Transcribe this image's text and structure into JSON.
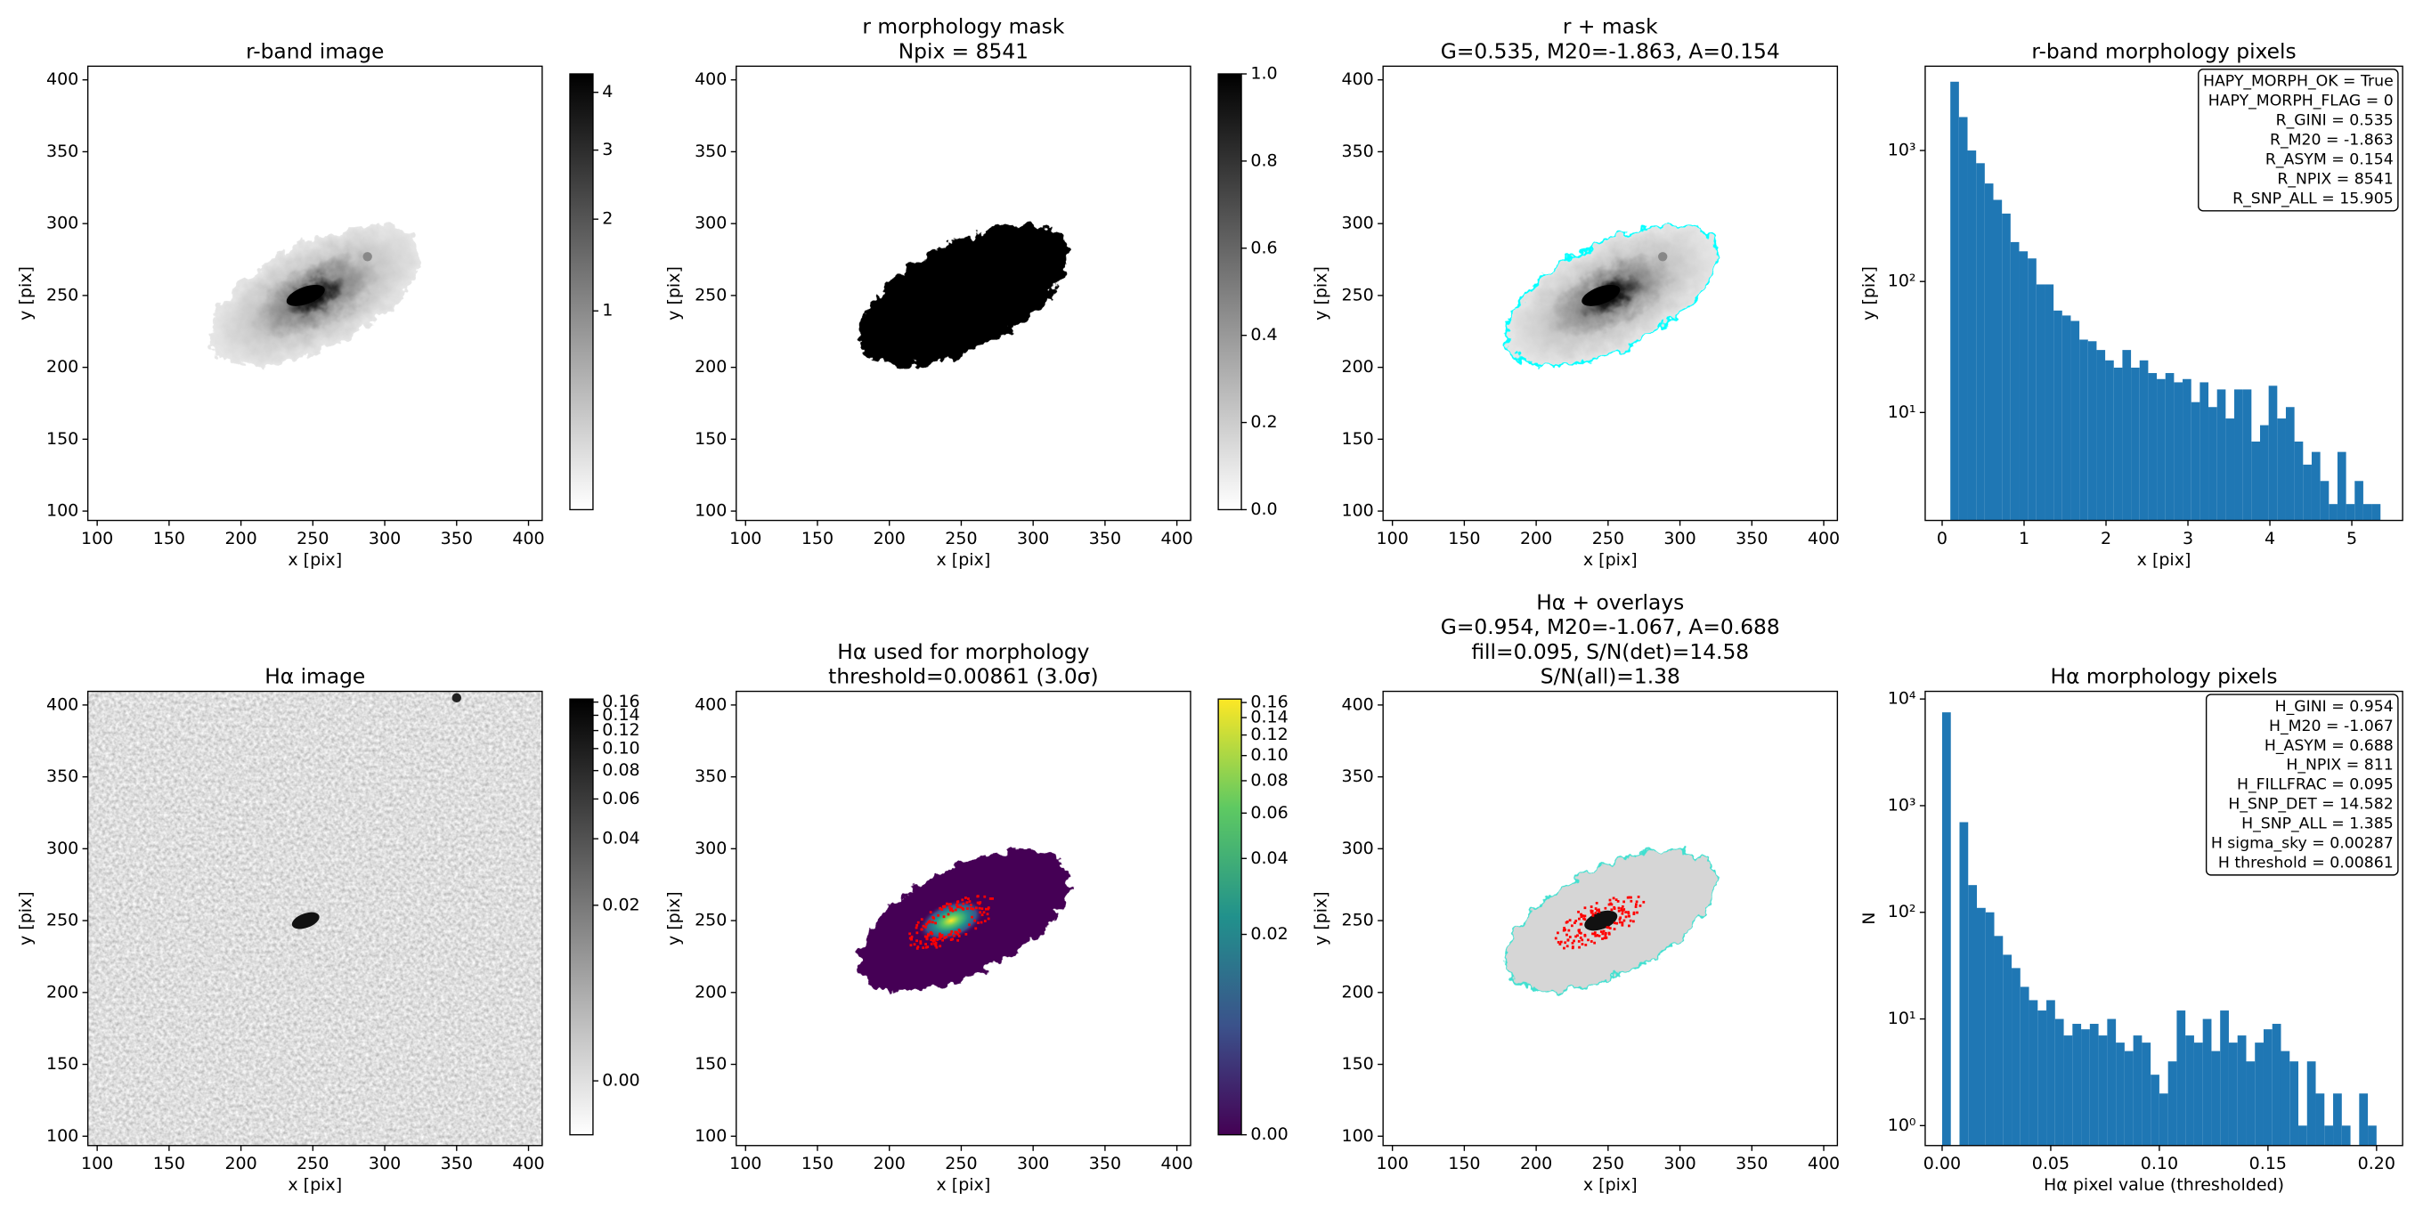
{
  "chart_data": [
    {
      "type": "image",
      "title": [
        "r-band image"
      ],
      "xlabel": "x [pix]",
      "ylabel": "y [pix]",
      "xlim": [
        93.5,
        409.5
      ],
      "ylim": [
        93.5,
        409.5
      ],
      "xticks": [
        100,
        150,
        200,
        250,
        300,
        350,
        400
      ],
      "yticks": [
        100,
        150,
        200,
        250,
        300,
        350,
        400
      ],
      "cmap": "gray_r",
      "colorbar": {
        "stretch": "sqrt",
        "clim": [
          0.12,
          4.35
        ],
        "ticks": [
          1,
          2,
          3,
          4
        ]
      }
    },
    {
      "type": "image",
      "title": [
        "r morphology mask",
        "Npix = 8541"
      ],
      "xlabel": "x [pix]",
      "ylabel": "y [pix]",
      "xlim": [
        93.5,
        409.5
      ],
      "ylim": [
        93.5,
        409.5
      ],
      "xticks": [
        100,
        150,
        200,
        250,
        300,
        350,
        400
      ],
      "yticks": [
        100,
        150,
        200,
        250,
        300,
        350,
        400
      ],
      "cmap": "gray_r",
      "colorbar": {
        "stretch": "linear",
        "clim": [
          0,
          1
        ],
        "ticks": [
          {
            "value": 0,
            "label": "0.0"
          },
          {
            "value": 0.2,
            "label": "0.2"
          },
          {
            "value": 0.4,
            "label": "0.4"
          },
          {
            "value": 0.6,
            "label": "0.6"
          },
          {
            "value": 0.8,
            "label": "0.8"
          },
          {
            "value": 1,
            "label": "1.0"
          }
        ]
      }
    },
    {
      "type": "image",
      "title": [
        "r + mask",
        "G=0.535, M20=-1.863, A=0.154"
      ],
      "xlabel": "x [pix]",
      "ylabel": "y [pix]",
      "xlim": [
        93.5,
        409.5
      ],
      "ylim": [
        93.5,
        409.5
      ],
      "xticks": [
        100,
        150,
        200,
        250,
        300,
        350,
        400
      ],
      "yticks": [
        100,
        150,
        200,
        250,
        300,
        350,
        400
      ],
      "cmap": "gray_r",
      "mask_outline_color": "#00ffff"
    },
    {
      "type": "histogram",
      "title": [
        "r-band morphology pixels"
      ],
      "xlabel": "x [pix]",
      "ylabel": "y [pix]",
      "color": "#1f77b4",
      "log_y": true,
      "xlim": [
        -0.207,
        5.62
      ],
      "ylim": [
        1.5,
        4400
      ],
      "xticks": [
        0,
        1,
        2,
        3,
        4,
        5
      ],
      "yticks": [
        {
          "value": 10,
          "label": "10¹"
        },
        {
          "value": 100,
          "label": "10²"
        },
        {
          "value": 1000,
          "label": "10³"
        }
      ],
      "bins": [
        0.1,
        0.205,
        0.31,
        0.415,
        0.52,
        0.625,
        0.73,
        0.835,
        0.94,
        1.045,
        1.15,
        1.255,
        1.36,
        1.465,
        1.57,
        1.675,
        1.78,
        1.885,
        1.99,
        2.095,
        2.2,
        2.305,
        2.41,
        2.515,
        2.62,
        2.725,
        2.83,
        2.935,
        3.04,
        3.145,
        3.25,
        3.355,
        3.46,
        3.565,
        3.67,
        3.775,
        3.88,
        3.985,
        4.09,
        4.195,
        4.3,
        4.405,
        4.51,
        4.615,
        4.72,
        4.825,
        4.93,
        5.035,
        5.14,
        5.245,
        5.35
      ],
      "values": [
        3350,
        1800,
        1000,
        800,
        560,
        420,
        330,
        200,
        170,
        150,
        95,
        95,
        60,
        55,
        50,
        36,
        35,
        30,
        25,
        22,
        30,
        22,
        25,
        20,
        18,
        20,
        17,
        18,
        12,
        17,
        11,
        15,
        9,
        15,
        15,
        6,
        8,
        16,
        9,
        11,
        6,
        4,
        5,
        3,
        2,
        5,
        2,
        3,
        2,
        2
      ],
      "annotation_loc": "upper right",
      "annotation": [
        "HAPY_MORPH_OK = True",
        "HAPY_MORPH_FLAG = 0",
        "R_GINI = 0.535",
        "R_M20 = -1.863",
        "R_ASYM = 0.154",
        "R_NPIX = 8541",
        "R_SNP_ALL = 15.905"
      ]
    },
    {
      "type": "image",
      "title": [
        "Hα image"
      ],
      "xlabel": "x [pix]",
      "ylabel": "y [pix]",
      "xlim": [
        93.5,
        409.5
      ],
      "ylim": [
        93.5,
        409.5
      ],
      "xticks": [
        100,
        150,
        200,
        250,
        300,
        350,
        400
      ],
      "yticks": [
        100,
        150,
        200,
        250,
        300,
        350,
        400
      ],
      "cmap": "gray_r",
      "colorbar": {
        "stretch": "asinh",
        "softening": 0.007,
        "clim": [
          -0.004,
          0.165
        ],
        "ticks": [
          {
            "value": 0,
            "label": "0.00"
          },
          {
            "value": 0.02,
            "label": "0.02"
          },
          {
            "value": 0.04,
            "label": "0.04"
          },
          {
            "value": 0.06,
            "label": "0.06"
          },
          {
            "value": 0.08,
            "label": "0.08"
          },
          {
            "value": 0.1,
            "label": "0.10"
          },
          {
            "value": 0.12,
            "label": "0.12"
          },
          {
            "value": 0.14,
            "label": "0.14"
          },
          {
            "value": 0.16,
            "label": "0.16"
          }
        ]
      }
    },
    {
      "type": "image",
      "title": [
        "Hα used for morphology",
        "threshold=0.00861 (3.0σ)"
      ],
      "xlabel": "x [pix]",
      "ylabel": "y [pix]",
      "xlim": [
        93.5,
        409.5
      ],
      "ylim": [
        93.5,
        409.5
      ],
      "xticks": [
        100,
        150,
        200,
        250,
        300,
        350,
        400
      ],
      "yticks": [
        100,
        150,
        200,
        250,
        300,
        350,
        400
      ],
      "cmap": "viridis",
      "contour_color": "#ff0000",
      "colorbar": {
        "stretch": "asinh",
        "softening": 0.007,
        "clim": [
          0,
          0.165
        ],
        "ticks": [
          {
            "value": 0,
            "label": "0.00"
          },
          {
            "value": 0.02,
            "label": "0.02"
          },
          {
            "value": 0.04,
            "label": "0.04"
          },
          {
            "value": 0.06,
            "label": "0.06"
          },
          {
            "value": 0.08,
            "label": "0.08"
          },
          {
            "value": 0.1,
            "label": "0.10"
          },
          {
            "value": 0.12,
            "label": "0.12"
          },
          {
            "value": 0.14,
            "label": "0.14"
          },
          {
            "value": 0.16,
            "label": "0.16"
          }
        ]
      }
    },
    {
      "type": "image",
      "title": [
        "Hα + overlays",
        "G=0.954, M20=-1.067, A=0.688",
        "fill=0.095, S/N(det)=14.58",
        "S/N(all)=1.38"
      ],
      "xlabel": "x [pix]",
      "ylabel": "y [pix]",
      "xlim": [
        93.5,
        409.5
      ],
      "ylim": [
        93.5,
        409.5
      ],
      "xticks": [
        100,
        150,
        200,
        250,
        300,
        350,
        400
      ],
      "yticks": [
        100,
        150,
        200,
        250,
        300,
        350,
        400
      ],
      "cmap": "gray_r",
      "mask_outline_color": "#40e0d0",
      "contour_color": "#ff0000"
    },
    {
      "type": "histogram",
      "title": [
        "Hα morphology pixels"
      ],
      "xlabel": "Hα pixel value (thresholded)",
      "ylabel": "N",
      "color": "#1f77b4",
      "log_y": true,
      "xlim": [
        -0.0078,
        0.212
      ],
      "ylim": [
        0.65,
        11800
      ],
      "xticks": [
        {
          "value": 0,
          "label": "0.00"
        },
        {
          "value": 0.05,
          "label": "0.05"
        },
        {
          "value": 0.1,
          "label": "0.10"
        },
        {
          "value": 0.15,
          "label": "0.15"
        },
        {
          "value": 0.2,
          "label": "0.20"
        }
      ],
      "yticks": [
        {
          "value": 1,
          "label": "10⁰"
        },
        {
          "value": 10,
          "label": "10¹"
        },
        {
          "value": 100,
          "label": "10²"
        },
        {
          "value": 1000,
          "label": "10³"
        },
        {
          "value": 10000,
          "label": "10⁴"
        }
      ],
      "bins": [
        0,
        0.004,
        0.008,
        0.012,
        0.016,
        0.02,
        0.024,
        0.028,
        0.032,
        0.036,
        0.04,
        0.044,
        0.048,
        0.052,
        0.056,
        0.06,
        0.064,
        0.068,
        0.072,
        0.076,
        0.08,
        0.084,
        0.088,
        0.092,
        0.096,
        0.1,
        0.104,
        0.108,
        0.112,
        0.116,
        0.12,
        0.124,
        0.128,
        0.132,
        0.136,
        0.14,
        0.144,
        0.148,
        0.152,
        0.156,
        0.16,
        0.164,
        0.168,
        0.172,
        0.176,
        0.18,
        0.184,
        0.188,
        0.192,
        0.196,
        0.2
      ],
      "values": [
        7500,
        0,
        700,
        180,
        110,
        100,
        60,
        40,
        30,
        20,
        15,
        12,
        15,
        10,
        7,
        9,
        8,
        9,
        7,
        10,
        6,
        5,
        7,
        6,
        3,
        2,
        4,
        12,
        7,
        6,
        10,
        5,
        12,
        6,
        7,
        4,
        6,
        8,
        9,
        5,
        4,
        1,
        4,
        2,
        1,
        2,
        1,
        0,
        2,
        1
      ],
      "annotation_loc": "upper right",
      "annotation": [
        "H_GINI = 0.954",
        "H_M20 = -1.067",
        "H_ASYM = 0.688",
        "H_NPIX = 811",
        "H_FILLFRAC = 0.095",
        "H_SNP_DET = 14.582",
        "H_SNP_ALL = 1.385",
        "H sigma_sky = 0.00287",
        "H threshold = 0.00861"
      ]
    }
  ]
}
